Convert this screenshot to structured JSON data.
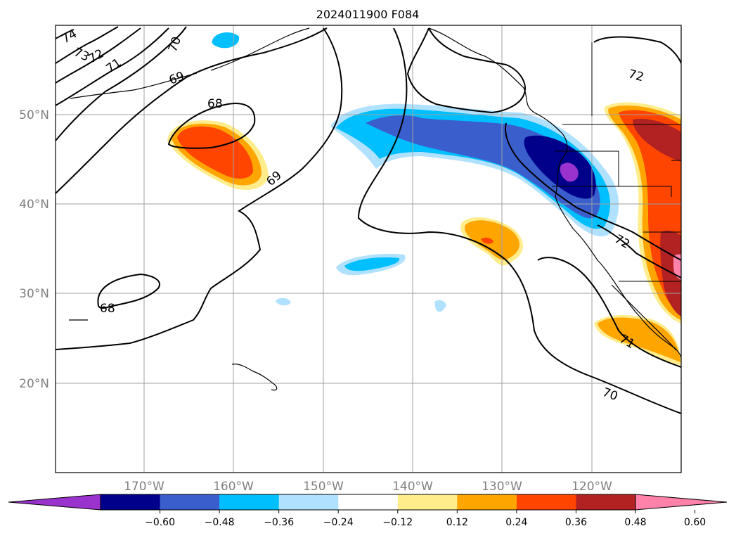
{
  "title": "2024011900 F084",
  "longitude_labels": [
    "170°W",
    "160°W",
    "150°W",
    "140°W",
    "130°W",
    "120°W"
  ],
  "latitude_labels": [
    "50°N",
    "40°N",
    "30°N",
    "20°N"
  ],
  "colorbar": {
    "colors": [
      "#9a32cd",
      "#00008b",
      "#3a5fcd",
      "#00bfff",
      "#b0e2ff",
      "#ffffff",
      "#ffec8b",
      "#ffa500",
      "#ff4500",
      "#b22222",
      "#ff82ab"
    ],
    "tick_labels": [
      "−0.60",
      "−0.48",
      "−0.36",
      "−0.24",
      "−0.12",
      "0.12",
      "0.24",
      "0.36",
      "0.48",
      "0.60"
    ]
  },
  "contour_labels": [
    "74",
    "73",
    "72",
    "71",
    "70",
    "69",
    "68",
    "69",
    "68",
    "72",
    "72",
    "71",
    "70"
  ],
  "grid": true
}
